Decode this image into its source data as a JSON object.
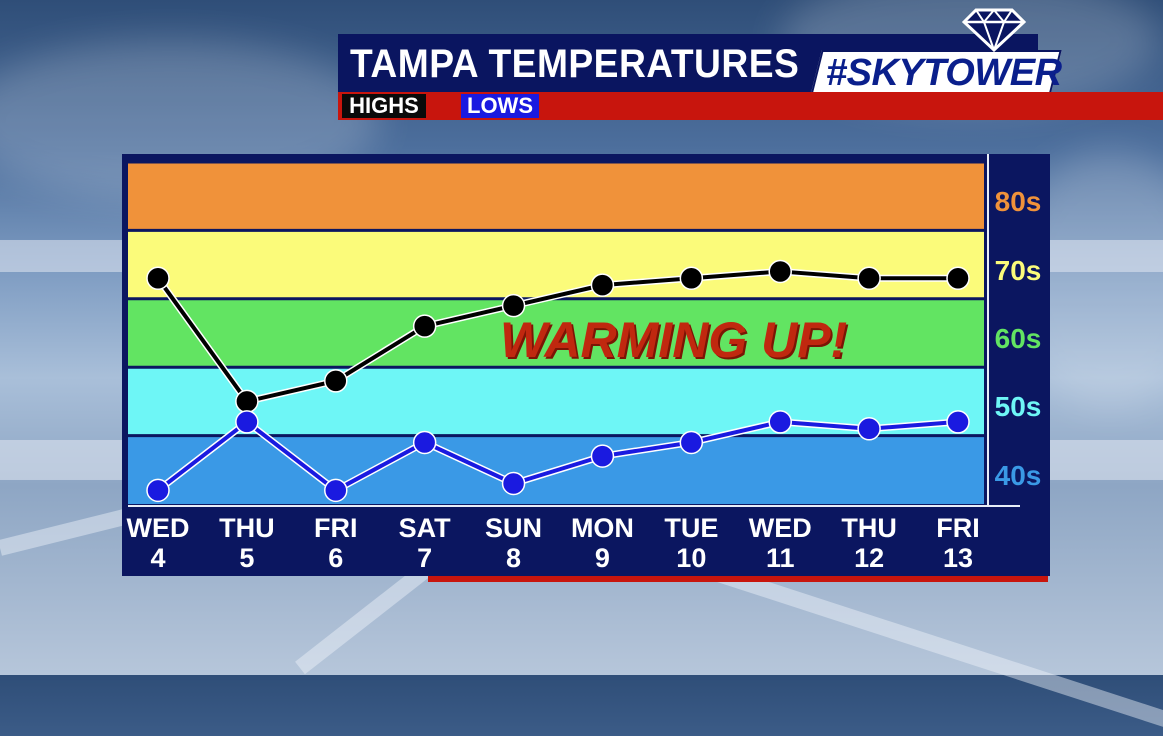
{
  "header": {
    "title": "TAMPA TEMPERATURES",
    "brand": "#SKYTOWER"
  },
  "legend": {
    "highs_label": "HIGHS",
    "lows_label": "LOWS"
  },
  "colors": {
    "highs_line": "#000000",
    "lows_line": "#1a1ae0",
    "title_bg": "#0a1560",
    "accent_red": "#c8150d"
  },
  "chart_data": {
    "type": "line",
    "categories": [
      {
        "day": "WED",
        "date": "4"
      },
      {
        "day": "THU",
        "date": "5"
      },
      {
        "day": "FRI",
        "date": "6"
      },
      {
        "day": "SAT",
        "date": "7"
      },
      {
        "day": "SUN",
        "date": "8"
      },
      {
        "day": "MON",
        "date": "9"
      },
      {
        "day": "TUE",
        "date": "10"
      },
      {
        "day": "WED",
        "date": "11"
      },
      {
        "day": "THU",
        "date": "12"
      },
      {
        "day": "FRI",
        "date": "13"
      }
    ],
    "series": [
      {
        "name": "HIGHS",
        "values": [
          71,
          53,
          56,
          64,
          67,
          70,
          71,
          72,
          71,
          71
        ]
      },
      {
        "name": "LOWS",
        "values": [
          40,
          50,
          40,
          47,
          41,
          45,
          47,
          50,
          49,
          50
        ]
      }
    ],
    "ylim": [
      38,
      88
    ],
    "bands": [
      {
        "label": "80s",
        "from": 78,
        "to": 88,
        "color": "#f0923a",
        "label_color": "#f0923a"
      },
      {
        "label": "70s",
        "from": 68,
        "to": 78,
        "color": "#fbfb7a",
        "label_color": "#fbfb7a"
      },
      {
        "label": "60s",
        "from": 58,
        "to": 68,
        "color": "#62e462",
        "label_color": "#62e462"
      },
      {
        "label": "50s",
        "from": 48,
        "to": 58,
        "color": "#6ef6f6",
        "label_color": "#6ef6f6"
      },
      {
        "label": "40s",
        "from": 38,
        "to": 48,
        "color": "#3a99e6",
        "label_color": "#3a99e6"
      }
    ],
    "annotation": "WARMING UP!"
  }
}
